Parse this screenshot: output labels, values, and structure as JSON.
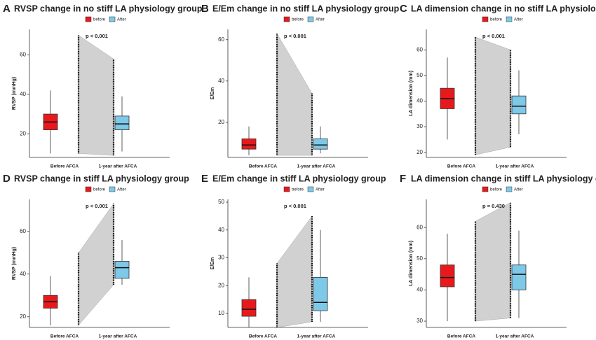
{
  "chart_data": [
    {
      "type": "box",
      "panel": "A",
      "title": "RVSP change in no stiff LA physiology group",
      "y_label": "RVSP (mmHg)",
      "annotation": "p < 0.001",
      "categories": [
        "Before AFCA",
        "1-year after AFCA"
      ],
      "ylim": [
        8,
        73
      ],
      "yticks": [
        20,
        40,
        60
      ],
      "series": [
        {
          "name": "before",
          "color": "#e8191c",
          "low": 10,
          "q1": 22,
          "median": 26,
          "q3": 30,
          "high": 42,
          "min": 10,
          "max": 70
        },
        {
          "name": "After",
          "color": "#7ec8e8",
          "low": 11,
          "q1": 22,
          "median": 25,
          "q3": 29,
          "high": 39,
          "min": 9,
          "max": 58
        }
      ]
    },
    {
      "type": "box",
      "panel": "B",
      "title": "E/Em change in no stiff LA physiology group",
      "y_label": "E/Em",
      "annotation": "p < 0.001",
      "categories": [
        "Before AFCA",
        "1-year after AFCA"
      ],
      "ylim": [
        3,
        65
      ],
      "yticks": [
        20,
        40,
        60
      ],
      "series": [
        {
          "name": "before",
          "color": "#e8191c",
          "low": 4,
          "q1": 7,
          "median": 9,
          "q3": 12,
          "high": 18,
          "min": 4,
          "max": 63
        },
        {
          "name": "After",
          "color": "#7ec8e8",
          "low": 5,
          "q1": 7,
          "median": 9,
          "q3": 12,
          "high": 18,
          "min": 4,
          "max": 34
        }
      ]
    },
    {
      "type": "box",
      "panel": "C",
      "title": "LA dimension change in no stiff LA physiology group",
      "y_label": "LA dimension (mm)",
      "annotation": "p < 0.001",
      "categories": [
        "Before AFCA",
        "1-year after AFCA"
      ],
      "ylim": [
        18,
        68
      ],
      "yticks": [
        20,
        30,
        40,
        50,
        60
      ],
      "series": [
        {
          "name": "before",
          "color": "#e8191c",
          "low": 25,
          "q1": 37,
          "median": 41,
          "q3": 45,
          "high": 57,
          "min": 19,
          "max": 65
        },
        {
          "name": "After",
          "color": "#7ec8e8",
          "low": 27,
          "q1": 35,
          "median": 38,
          "q3": 42,
          "high": 52,
          "min": 22,
          "max": 60
        }
      ]
    },
    {
      "type": "box",
      "panel": "D",
      "title": "RVSP change in stiff LA physiology group",
      "y_label": "RVSP (mmHg)",
      "annotation": "p < 0.001",
      "categories": [
        "Before AFCA",
        "1-year after AFCA"
      ],
      "ylim": [
        15,
        75
      ],
      "yticks": [
        20,
        40,
        60
      ],
      "series": [
        {
          "name": "before",
          "color": "#e8191c",
          "low": 16,
          "q1": 24,
          "median": 27,
          "q3": 30,
          "high": 39,
          "min": 16,
          "max": 50
        },
        {
          "name": "After",
          "color": "#7ec8e8",
          "low": 35,
          "q1": 38,
          "median": 43,
          "q3": 46,
          "high": 56,
          "min": 35,
          "max": 73
        }
      ]
    },
    {
      "type": "box",
      "panel": "E",
      "title": "E/Em change in stiff LA physiology group",
      "y_label": "E/Em",
      "annotation": "p < 0.001",
      "categories": [
        "Before AFCA",
        "1-year after AFCA"
      ],
      "ylim": [
        5,
        51
      ],
      "yticks": [
        10,
        20,
        30,
        40,
        50
      ],
      "series": [
        {
          "name": "before",
          "color": "#e8191c",
          "low": 5,
          "q1": 9,
          "median": 11.5,
          "q3": 15,
          "high": 23,
          "min": 5,
          "max": 28
        },
        {
          "name": "After",
          "color": "#7ec8e8",
          "low": 7,
          "q1": 11,
          "median": 14,
          "q3": 23,
          "high": 40,
          "min": 7,
          "max": 45
        }
      ]
    },
    {
      "type": "box",
      "panel": "F",
      "title": "LA dimension change in stiff LA physiology group",
      "y_label": "LA dimension (mm)",
      "annotation": "p = 0.430",
      "categories": [
        "Before AFCA",
        "1-year after AFCA"
      ],
      "ylim": [
        28,
        69
      ],
      "yticks": [
        30,
        40,
        50,
        60
      ],
      "series": [
        {
          "name": "before",
          "color": "#e8191c",
          "low": 30,
          "q1": 41,
          "median": 44,
          "q3": 48,
          "high": 58,
          "min": 30,
          "max": 62
        },
        {
          "name": "After",
          "color": "#7ec8e8",
          "low": 31,
          "q1": 40,
          "median": 45,
          "q3": 48,
          "high": 59,
          "min": 31,
          "max": 68
        }
      ]
    }
  ]
}
